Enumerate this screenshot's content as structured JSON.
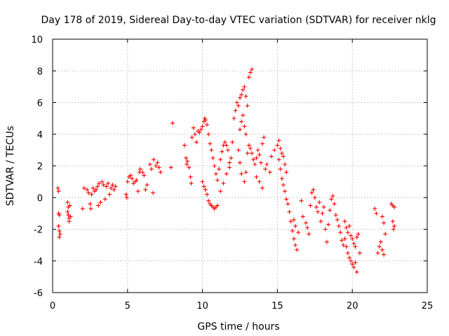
{
  "chart_data": {
    "type": "scatter",
    "title": "Day 178 of 2019, Sidereal Day-to-day VTEC variation (SDTVAR) for receiver nklg",
    "xlabel": "GPS time / hours",
    "ylabel": "SDTVAR / TECUs",
    "xlim": [
      0,
      25
    ],
    "ylim": [
      -6,
      10
    ],
    "x_ticks": [
      0,
      5,
      10,
      15,
      20,
      25
    ],
    "y_ticks": [
      -6,
      -4,
      -2,
      0,
      2,
      4,
      6,
      8,
      10
    ],
    "x_tick_labels": [
      "0",
      "5",
      "10",
      "15",
      "20",
      "25"
    ],
    "y_tick_labels": [
      "-6",
      "-4",
      "-2",
      "0",
      "2",
      "4",
      "6",
      "8",
      "10"
    ],
    "grid": true,
    "marker": "plus",
    "color": "#ff0000",
    "series": [
      {
        "name": "SDTVAR",
        "points": [
          [
            0.35,
            0.6
          ],
          [
            0.4,
            0.4
          ],
          [
            0.4,
            -1.0
          ],
          [
            0.45,
            -1.1
          ],
          [
            0.4,
            -1.8
          ],
          [
            0.45,
            -2.1
          ],
          [
            0.5,
            -2.3
          ],
          [
            0.45,
            -2.5
          ],
          [
            1.0,
            -0.3
          ],
          [
            1.05,
            -0.6
          ],
          [
            1.0,
            -0.9
          ],
          [
            1.05,
            -1.1
          ],
          [
            1.1,
            -1.3
          ],
          [
            1.1,
            -1.5
          ],
          [
            1.15,
            -0.5
          ],
          [
            1.2,
            -1.2
          ],
          [
            2.0,
            -0.7
          ],
          [
            2.1,
            0.6
          ],
          [
            2.3,
            0.5
          ],
          [
            2.4,
            0.3
          ],
          [
            2.5,
            -0.4
          ],
          [
            2.55,
            -0.7
          ],
          [
            2.6,
            0.2
          ],
          [
            2.7,
            0.6
          ],
          [
            2.8,
            0.4
          ],
          [
            2.9,
            0.5
          ],
          [
            3.0,
            0.7
          ],
          [
            3.05,
            -0.5
          ],
          [
            3.1,
            0.9
          ],
          [
            3.2,
            -0.3
          ],
          [
            3.3,
            1.0
          ],
          [
            3.4,
            0.8
          ],
          [
            3.5,
            -0.1
          ],
          [
            3.6,
            0.7
          ],
          [
            3.7,
            0.9
          ],
          [
            3.8,
            0.2
          ],
          [
            3.9,
            0.6
          ],
          [
            4.0,
            0.8
          ],
          [
            4.1,
            0.5
          ],
          [
            4.2,
            0.7
          ],
          [
            4.9,
            0.2
          ],
          [
            4.95,
            0.0
          ],
          [
            5.0,
            1.0
          ],
          [
            5.1,
            1.3
          ],
          [
            5.2,
            1.4
          ],
          [
            5.3,
            1.2
          ],
          [
            5.4,
            0.9
          ],
          [
            5.5,
            1.0
          ],
          [
            5.6,
            1.1
          ],
          [
            5.7,
            0.4
          ],
          [
            5.8,
            1.6
          ],
          [
            5.85,
            1.8
          ],
          [
            6.0,
            1.6
          ],
          [
            6.1,
            1.4
          ],
          [
            6.2,
            0.5
          ],
          [
            6.3,
            0.8
          ],
          [
            6.5,
            2.1
          ],
          [
            6.6,
            1.8
          ],
          [
            6.7,
            0.3
          ],
          [
            6.75,
            2.4
          ],
          [
            6.9,
            2.0
          ],
          [
            7.0,
            2.2
          ],
          [
            7.1,
            1.9
          ],
          [
            7.2,
            1.6
          ],
          [
            7.9,
            1.9
          ],
          [
            8.0,
            4.7
          ],
          [
            8.8,
            3.3
          ],
          [
            8.9,
            2.5
          ],
          [
            8.95,
            2.1
          ],
          [
            9.0,
            2.3
          ],
          [
            9.1,
            1.9
          ],
          [
            9.2,
            1.3
          ],
          [
            9.25,
            0.9
          ],
          [
            9.3,
            3.8
          ],
          [
            9.4,
            4.4
          ],
          [
            9.5,
            4.0
          ],
          [
            9.6,
            3.5
          ],
          [
            9.7,
            4.2
          ],
          [
            9.8,
            4.1
          ],
          [
            9.9,
            4.3
          ],
          [
            10.0,
            4.5
          ],
          [
            10.1,
            4.8
          ],
          [
            10.15,
            5.0
          ],
          [
            10.2,
            4.9
          ],
          [
            10.3,
            4.6
          ],
          [
            10.0,
            1.0
          ],
          [
            10.1,
            0.7
          ],
          [
            10.2,
            0.5
          ],
          [
            10.3,
            0.2
          ],
          [
            10.4,
            -0.2
          ],
          [
            10.5,
            -0.4
          ],
          [
            10.6,
            -0.5
          ],
          [
            10.7,
            -0.6
          ],
          [
            10.8,
            -0.7
          ],
          [
            10.9,
            -0.6
          ],
          [
            11.0,
            -0.5
          ],
          [
            10.4,
            4.0
          ],
          [
            10.5,
            3.4
          ],
          [
            10.6,
            3.0
          ],
          [
            10.7,
            2.5
          ],
          [
            10.8,
            2.0
          ],
          [
            10.9,
            1.5
          ],
          [
            11.0,
            1.1
          ],
          [
            11.1,
            1.8
          ],
          [
            11.2,
            2.4
          ],
          [
            11.3,
            2.9
          ],
          [
            11.4,
            3.3
          ],
          [
            11.5,
            3.5
          ],
          [
            11.6,
            3.3
          ],
          [
            11.7,
            3.0
          ],
          [
            11.8,
            2.2
          ],
          [
            11.9,
            2.5
          ],
          [
            12.0,
            3.5
          ],
          [
            11.2,
            0.4
          ],
          [
            11.4,
            0.9
          ],
          [
            11.6,
            1.5
          ],
          [
            11.8,
            1.9
          ],
          [
            12.1,
            5.0
          ],
          [
            12.2,
            5.5
          ],
          [
            12.3,
            6.0
          ],
          [
            12.4,
            5.8
          ],
          [
            12.5,
            6.3
          ],
          [
            12.6,
            6.5
          ],
          [
            12.7,
            6.8
          ],
          [
            12.8,
            7.0
          ],
          [
            12.9,
            6.4
          ],
          [
            13.0,
            5.8
          ],
          [
            12.7,
            5.2
          ],
          [
            12.8,
            4.5
          ],
          [
            12.9,
            4.0
          ],
          [
            12.5,
            4.3
          ],
          [
            12.6,
            4.8
          ],
          [
            12.4,
            3.0
          ],
          [
            12.5,
            2.2
          ],
          [
            12.6,
            1.5
          ],
          [
            12.8,
            1.0
          ],
          [
            12.9,
            1.6
          ],
          [
            13.0,
            2.8
          ],
          [
            13.1,
            7.6
          ],
          [
            13.2,
            7.9
          ],
          [
            13.3,
            8.1
          ],
          [
            13.1,
            3.3
          ],
          [
            13.2,
            3.1
          ],
          [
            13.3,
            2.8
          ],
          [
            13.4,
            2.4
          ],
          [
            13.5,
            2.1
          ],
          [
            13.6,
            2.5
          ],
          [
            13.7,
            3.0
          ],
          [
            13.8,
            2.7
          ],
          [
            13.9,
            2.2
          ],
          [
            14.0,
            3.4
          ],
          [
            14.1,
            3.8
          ],
          [
            13.6,
            1.3
          ],
          [
            13.8,
            1.0
          ],
          [
            14.0,
            0.6
          ],
          [
            14.2,
            1.8
          ],
          [
            14.3,
            2.1
          ],
          [
            14.5,
            1.6
          ],
          [
            14.6,
            2.6
          ],
          [
            14.8,
            3.0
          ],
          [
            15.0,
            3.3
          ],
          [
            15.1,
            3.6
          ],
          [
            15.2,
            3.1
          ],
          [
            15.3,
            2.8
          ],
          [
            15.4,
            2.6
          ],
          [
            15.5,
            2.1
          ],
          [
            15.6,
            1.6
          ],
          [
            15.1,
            2.4
          ],
          [
            15.2,
            1.8
          ],
          [
            15.3,
            1.2
          ],
          [
            15.4,
            0.8
          ],
          [
            15.5,
            0.4
          ],
          [
            15.6,
            -0.1
          ],
          [
            15.7,
            -0.4
          ],
          [
            15.8,
            -0.9
          ],
          [
            15.9,
            -1.5
          ],
          [
            16.0,
            -2.1
          ],
          [
            16.1,
            -2.6
          ],
          [
            16.2,
            -3.0
          ],
          [
            16.3,
            -3.3
          ],
          [
            16.1,
            -1.4
          ],
          [
            16.2,
            -1.8
          ],
          [
            16.4,
            -2.2
          ],
          [
            16.6,
            -0.2
          ],
          [
            16.7,
            -1.2
          ],
          [
            16.9,
            -1.6
          ],
          [
            17.0,
            -1.9
          ],
          [
            17.1,
            -2.3
          ],
          [
            17.2,
            -0.5
          ],
          [
            17.3,
            0.3
          ],
          [
            17.4,
            0.5
          ],
          [
            17.5,
            0.0
          ],
          [
            17.6,
            -0.6
          ],
          [
            17.7,
            -0.9
          ],
          [
            17.8,
            -0.3
          ],
          [
            17.9,
            -1.5
          ],
          [
            18.0,
            -1.0
          ],
          [
            18.1,
            -0.6
          ],
          [
            18.2,
            -2.0
          ],
          [
            18.3,
            -2.8
          ],
          [
            18.4,
            -1.7
          ],
          [
            18.5,
            -0.8
          ],
          [
            18.6,
            -0.1
          ],
          [
            18.7,
            0.1
          ],
          [
            18.8,
            -0.4
          ],
          [
            18.9,
            -1.1
          ],
          [
            19.0,
            -1.4
          ],
          [
            19.1,
            -1.8
          ],
          [
            19.2,
            -2.2
          ],
          [
            19.3,
            -2.7
          ],
          [
            19.4,
            -3.0
          ],
          [
            19.5,
            -2.6
          ],
          [
            19.6,
            -3.1
          ],
          [
            19.7,
            -3.5
          ],
          [
            19.8,
            -3.8
          ],
          [
            19.9,
            -4.0
          ],
          [
            20.0,
            -4.2
          ],
          [
            20.1,
            -4.4
          ],
          [
            20.2,
            -4.1
          ],
          [
            20.3,
            -4.7
          ],
          [
            19.5,
            -1.5
          ],
          [
            19.6,
            -1.9
          ],
          [
            19.7,
            -2.2
          ],
          [
            19.8,
            -1.8
          ],
          [
            19.9,
            -2.4
          ],
          [
            20.0,
            -2.6
          ],
          [
            20.1,
            -2.9
          ],
          [
            20.2,
            -3.1
          ],
          [
            20.3,
            -2.5
          ],
          [
            20.4,
            -2.3
          ],
          [
            20.5,
            -3.5
          ],
          [
            21.5,
            -0.7
          ],
          [
            21.6,
            -1.0
          ],
          [
            21.7,
            -3.5
          ],
          [
            21.8,
            -3.1
          ],
          [
            21.9,
            -2.8
          ],
          [
            22.0,
            -3.3
          ],
          [
            22.1,
            -3.6
          ],
          [
            22.0,
            -1.2
          ],
          [
            22.1,
            -1.6
          ],
          [
            22.2,
            -2.3
          ],
          [
            22.6,
            -0.4
          ],
          [
            22.7,
            -0.5
          ],
          [
            22.8,
            -0.6
          ],
          [
            22.7,
            -1.5
          ],
          [
            22.8,
            -1.8
          ],
          [
            22.75,
            -2.0
          ]
        ]
      }
    ]
  }
}
